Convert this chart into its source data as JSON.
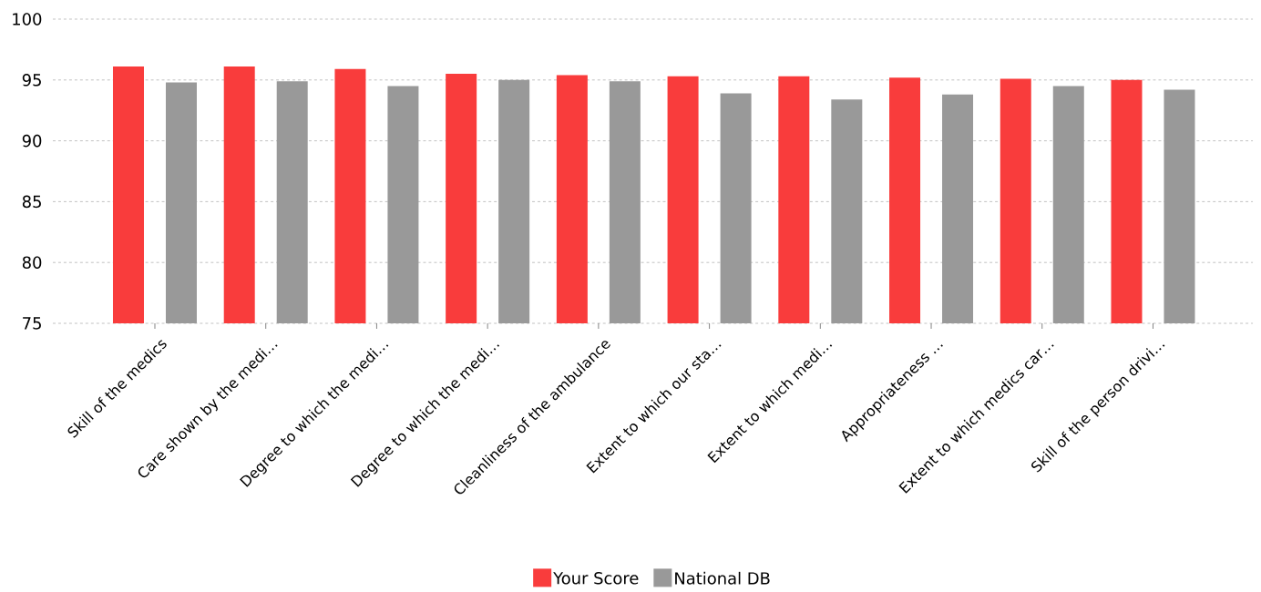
{
  "chart_data": {
    "type": "bar",
    "categories": [
      "Skill of the medics",
      "Care shown by the medi…",
      "Degree to which the medi…",
      "Degree to which the medi…",
      "Cleanliness of the ambulance",
      "Extent to which our sta…",
      "Extent to which medi…",
      "Appropriateness …",
      "Extent to which medics car…",
      "Skill of the person drivi…"
    ],
    "series": [
      {
        "name": "Your Score",
        "color": "#f93c3c",
        "values": [
          96.1,
          96.1,
          95.9,
          95.5,
          95.4,
          95.3,
          95.3,
          95.2,
          95.1,
          95.0
        ]
      },
      {
        "name": "National DB",
        "color": "#999999",
        "values": [
          94.8,
          94.9,
          94.5,
          95.0,
          94.9,
          93.9,
          93.4,
          93.8,
          94.5,
          94.2
        ]
      }
    ],
    "ylim": [
      75,
      100
    ],
    "yticks": [
      75,
      80,
      85,
      90,
      95,
      100
    ],
    "grid": "y",
    "legend": "bottom"
  }
}
